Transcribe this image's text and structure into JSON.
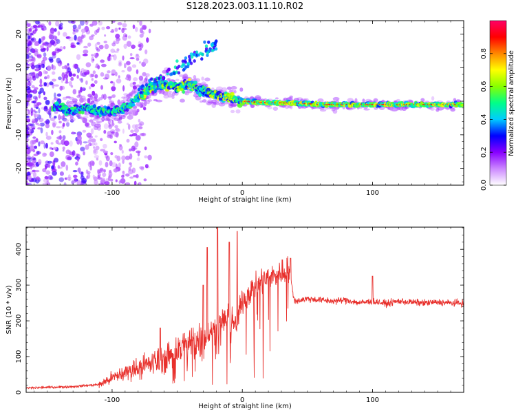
{
  "title": "S128.2023.003.11.10.R02",
  "chart_data": [
    {
      "type": "heatmap",
      "xlabel": "Height of straight line (km)",
      "ylabel": "Frequency (Hz)",
      "xlim": [
        -166,
        170
      ],
      "ylim": [
        -25,
        24
      ],
      "xticks": [
        -100,
        0,
        100
      ],
      "yticks": [
        -20,
        -10,
        0,
        10,
        20
      ],
      "colorbar": {
        "label": "Normalized spectral amplitude",
        "range": [
          0,
          1
        ],
        "ticks": [
          "0.0",
          "0.2",
          "0.4",
          "0.6",
          "0.8"
        ],
        "tick_values": [
          0.0,
          0.2,
          0.4,
          0.6,
          0.8
        ],
        "colormap": [
          "#ffffff",
          "#cc88ff",
          "#8800ff",
          "#0000ff",
          "#00ccff",
          "#00ff88",
          "#88ff00",
          "#ffff00",
          "#ff8800",
          "#ff0000",
          "#ff0066"
        ]
      },
      "ridge": {
        "x": [
          -140,
          -130,
          -120,
          -110,
          -100,
          -90,
          -80,
          -70,
          -60,
          -50,
          -40,
          -30,
          -20,
          -10,
          0,
          20,
          40,
          60,
          80,
          100,
          120,
          140,
          170
        ],
        "frequency": [
          -2,
          -3,
          -2,
          -3,
          -3,
          -2,
          1,
          4,
          5,
          4,
          5,
          3,
          2,
          1,
          0,
          -0.5,
          -0.5,
          -1,
          -1,
          -1,
          -1,
          -1,
          -1
        ]
      }
    },
    {
      "type": "line",
      "xlabel": "Height of straight line (km)",
      "ylabel": "SNR (10 * v/v)",
      "xlim": [
        -166,
        170
      ],
      "ylim": [
        0,
        462
      ],
      "xticks": [
        -100,
        0,
        100
      ],
      "yticks": [
        0,
        100,
        200,
        300,
        400
      ],
      "series": [
        {
          "color": "#e8302c",
          "x": [
            -166,
            -150,
            -130,
            -110,
            -100,
            -90,
            -80,
            -70,
            -60,
            -50,
            -40,
            -30,
            -20,
            -15,
            -10,
            -5,
            0,
            10,
            20,
            30,
            36,
            40,
            50,
            60,
            70,
            80,
            90,
            100,
            110,
            120,
            130,
            140,
            150,
            160,
            170
          ],
          "y": [
            12,
            14,
            16,
            22,
            40,
            55,
            70,
            80,
            95,
            120,
            135,
            155,
            180,
            200,
            220,
            180,
            260,
            300,
            320,
            335,
            345,
            255,
            262,
            258,
            255,
            258,
            250,
            255,
            248,
            255,
            252,
            250,
            252,
            250,
            250
          ]
        }
      ],
      "spikes": [
        {
          "x": -63,
          "y": 180
        },
        {
          "x": -30,
          "y": 300
        },
        {
          "x": -27,
          "y": 405
        },
        {
          "x": -19,
          "y": 462
        },
        {
          "x": -10,
          "y": 420
        },
        {
          "x": -4,
          "y": 450
        },
        {
          "x": 37,
          "y": 375
        },
        {
          "x": 100,
          "y": 325
        }
      ]
    }
  ]
}
